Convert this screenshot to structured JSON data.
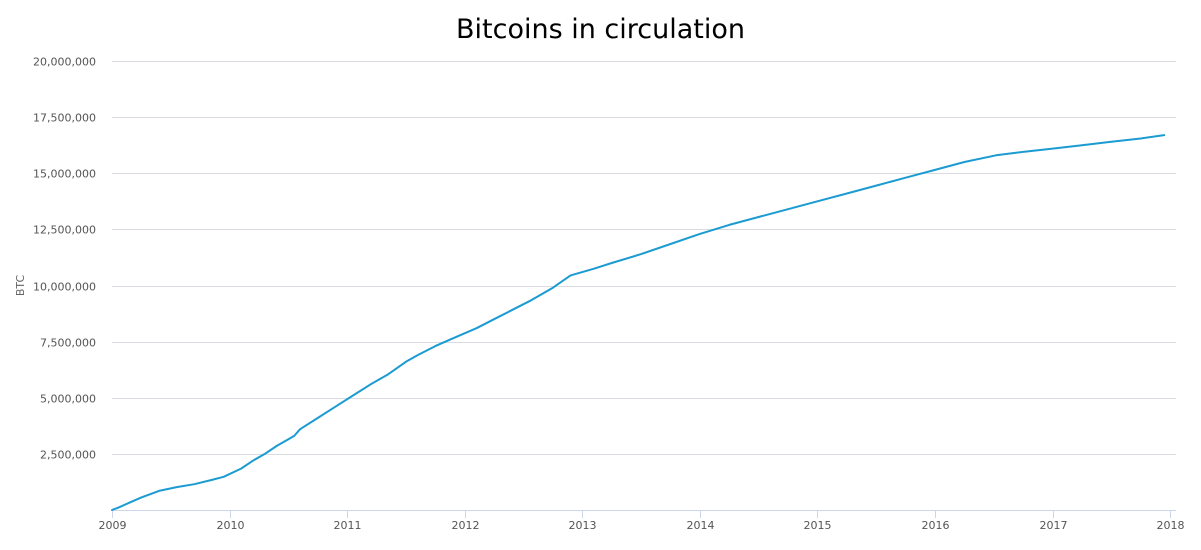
{
  "chart_data": {
    "type": "line",
    "title": "Bitcoins in circulation",
    "xlabel": "",
    "ylabel": "BTC",
    "xlim": [
      2009.0,
      2018.05
    ],
    "ylim": [
      0,
      20000000
    ],
    "x_ticks": [
      2009,
      2010,
      2011,
      2012,
      2013,
      2014,
      2015,
      2016,
      2017,
      2018
    ],
    "x_tick_labels": [
      "2009",
      "2010",
      "2011",
      "2012",
      "2013",
      "2014",
      "2015",
      "2016",
      "2017",
      "2018"
    ],
    "y_ticks": [
      2500000,
      5000000,
      7500000,
      10000000,
      12500000,
      15000000,
      17500000,
      20000000
    ],
    "y_tick_labels": [
      "2,500,000",
      "5,000,000",
      "7,500,000",
      "10,000,000",
      "12,500,000",
      "15,000,000",
      "17,500,000",
      "20,000,000"
    ],
    "grid": true,
    "legend": "none",
    "series_color": "#1b9bd1",
    "series": [
      {
        "x": [
          2009.0,
          2009.05,
          2009.15,
          2009.25,
          2009.4,
          2009.55,
          2009.7,
          2009.85,
          2009.95,
          2010.1,
          2010.2,
          2010.3,
          2010.4,
          2010.5,
          2010.55,
          2010.6,
          2010.75,
          2010.9,
          2011.05,
          2011.2,
          2011.35,
          2011.5,
          2011.6,
          2011.75,
          2011.9,
          2012.1,
          2012.25,
          2012.4,
          2012.55,
          2012.75,
          2012.9,
          2013.1,
          2013.25,
          2013.5,
          2013.75,
          2014.0,
          2014.25,
          2014.5,
          2014.75,
          2015.0,
          2015.25,
          2015.5,
          2015.75,
          2016.0,
          2016.25,
          2016.52,
          2016.75,
          2017.0,
          2017.25,
          2017.5,
          2017.75,
          2017.95
        ],
        "y": [
          0,
          100000,
          330000,
          560000,
          850000,
          1020000,
          1150000,
          1340000,
          1480000,
          1850000,
          2200000,
          2500000,
          2850000,
          3150000,
          3300000,
          3600000,
          4100000,
          4600000,
          5100000,
          5600000,
          6050000,
          6600000,
          6900000,
          7300000,
          7650000,
          8100000,
          8500000,
          8900000,
          9300000,
          9900000,
          10450000,
          10750000,
          11000000,
          11400000,
          11850000,
          12300000,
          12700000,
          13050000,
          13400000,
          13750000,
          14100000,
          14450000,
          14800000,
          15150000,
          15500000,
          15800000,
          15950000,
          16100000,
          16250000,
          16400000,
          16550000,
          16700000
        ]
      }
    ]
  }
}
